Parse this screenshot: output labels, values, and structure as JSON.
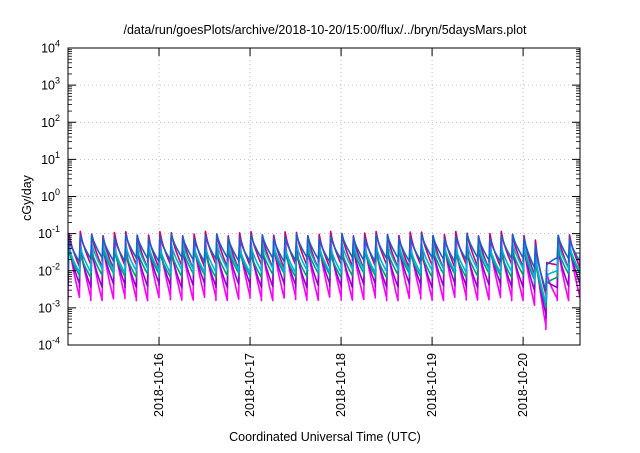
{
  "chart_data": {
    "type": "line",
    "title": "/data/run/goesPlots/archive/2018-10-20/15:00/flux/../bryn/5daysMars.plot",
    "xlabel": "Coordinated Universal Time (UTC)",
    "ylabel": "cGy/day",
    "x_range": [
      "2018-10-15T00:00",
      "2018-10-20T15:00"
    ],
    "ylim": [
      0.0001,
      10000
    ],
    "y_scale": "log",
    "grid": true,
    "y_ticks": [
      {
        "value": 0.0001,
        "base": "10",
        "exp": "-4"
      },
      {
        "value": 0.001,
        "base": "10",
        "exp": "-3"
      },
      {
        "value": 0.01,
        "base": "10",
        "exp": "-2"
      },
      {
        "value": 0.1,
        "base": "10",
        "exp": "-1"
      },
      {
        "value": 1,
        "base": "10",
        "exp": "0"
      },
      {
        "value": 10,
        "base": "10",
        "exp": "1"
      },
      {
        "value": 100,
        "base": "10",
        "exp": "2"
      },
      {
        "value": 1000,
        "base": "10",
        "exp": "3"
      },
      {
        "value": 10000,
        "base": "10",
        "exp": "4"
      }
    ],
    "x_ticks": [
      {
        "value": "2018-10-16T00:00",
        "label": "2018-10-16"
      },
      {
        "value": "2018-10-17T00:00",
        "label": "2018-10-17"
      },
      {
        "value": "2018-10-18T00:00",
        "label": "2018-10-18"
      },
      {
        "value": "2018-10-19T00:00",
        "label": "2018-10-19"
      },
      {
        "value": "2018-10-20T00:00",
        "label": "2018-10-20"
      }
    ],
    "series": [
      {
        "color": "#d0006f",
        "peak": 0.1,
        "trough": 0.013
      },
      {
        "color": "#ff00ff",
        "peak": 0.06,
        "trough": 0.0018
      },
      {
        "color": "#9400d3",
        "peak": 0.04,
        "trough": 0.004
      },
      {
        "color": "#009e73",
        "peak": 0.035,
        "trough": 0.0075
      },
      {
        "color": "#00b4e0",
        "peak": 0.05,
        "trough": 0.01
      },
      {
        "color": "#1a5fd0",
        "peak": 0.085,
        "trough": 0.02
      }
    ],
    "sawtooth": {
      "period_hours": 3,
      "dip": {
        "start": "2018-10-20T02:00",
        "min": "2018-10-20T06:00",
        "end": "2018-10-20T08:00",
        "min_factor": 0.15
      }
    }
  }
}
